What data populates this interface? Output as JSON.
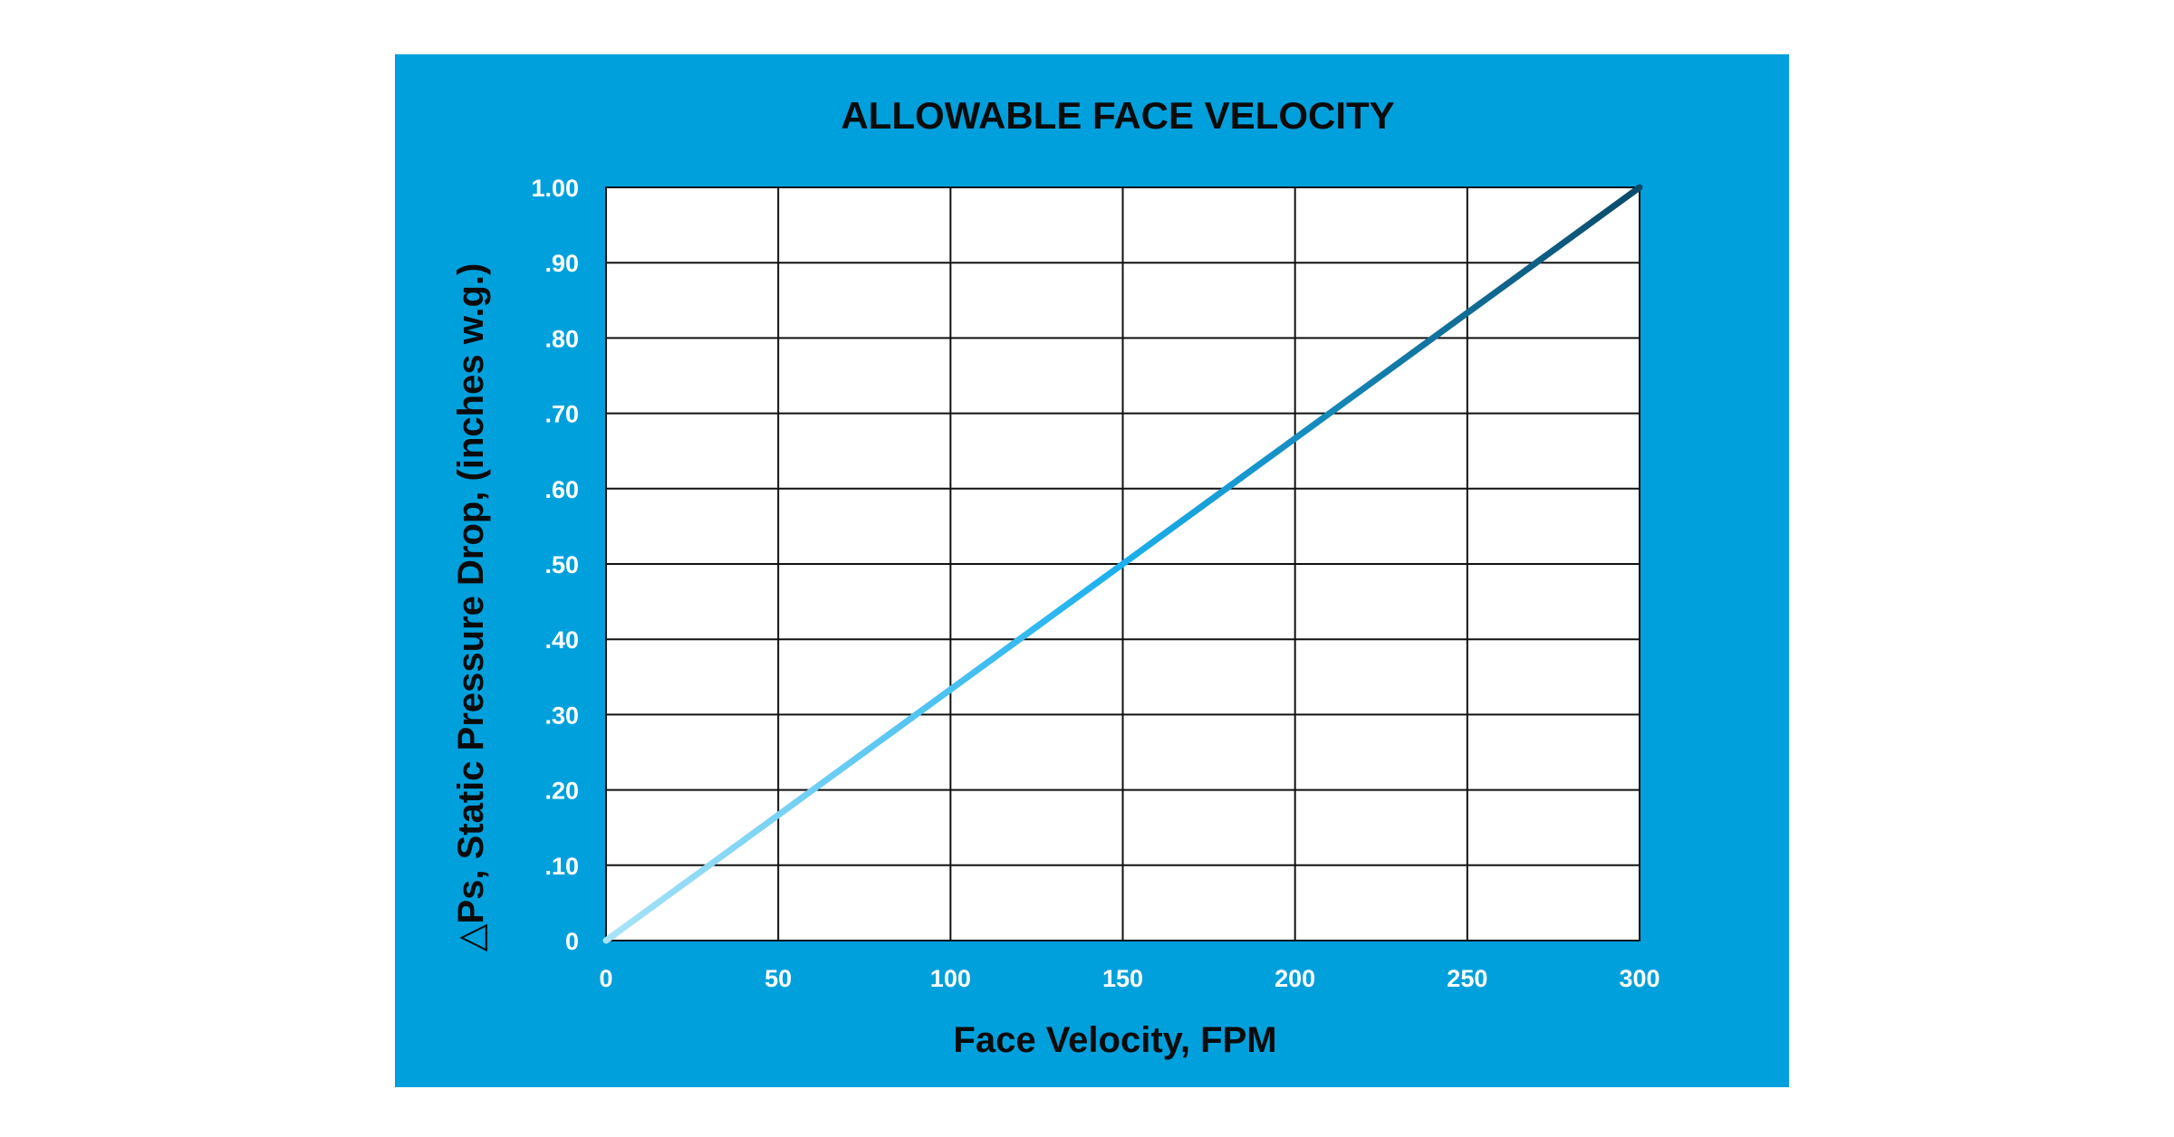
{
  "chart_data": {
    "type": "line",
    "title": "ALLOWABLE FACE VELOCITY",
    "xlabel": "Face Velocity, FPM",
    "ylabel": "△Ps, Static Pressure Drop, (inches w.g.)",
    "xlim": [
      0,
      300
    ],
    "ylim": [
      0,
      1.0
    ],
    "x_ticks": [
      0,
      50,
      100,
      150,
      200,
      250,
      300
    ],
    "x_tick_labels": [
      "0",
      "50",
      "100",
      "150",
      "200",
      "250",
      "300"
    ],
    "y_ticks": [
      0,
      0.1,
      0.2,
      0.3,
      0.4,
      0.5,
      0.6,
      0.7,
      0.8,
      0.9,
      1.0
    ],
    "y_tick_labels": [
      "0",
      ".10",
      ".20",
      ".30",
      ".40",
      ".50",
      ".60",
      ".70",
      ".80",
      ".90",
      "1.00"
    ],
    "grid": true,
    "series": [
      {
        "x": [
          0,
          300
        ],
        "y": [
          0,
          1.0
        ],
        "color_start": "#a9e3f8",
        "color_mid": "#1ab0ee",
        "color_end": "#0c4a6a"
      }
    ],
    "colors": {
      "background": "#00a0dc",
      "plot_area": "#ffffff",
      "grid": "#111111",
      "tick_text": "#ffffff"
    }
  }
}
